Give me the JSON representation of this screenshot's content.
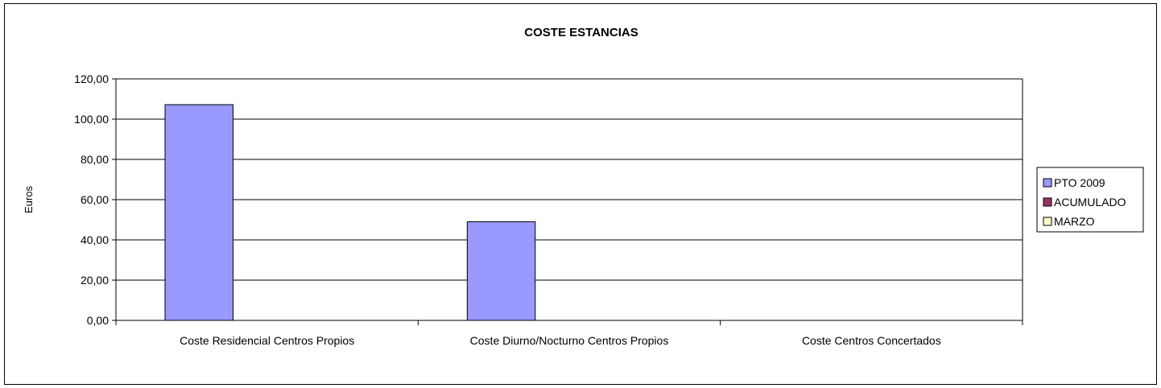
{
  "chart_data": {
    "type": "bar",
    "title": "COSTE ESTANCIAS",
    "xlabel": "",
    "ylabel": "Euros",
    "ylim": [
      0,
      120
    ],
    "yticks": [
      "0,00",
      "20,00",
      "40,00",
      "60,00",
      "80,00",
      "100,00",
      "120,00"
    ],
    "ytick_values": [
      0,
      20,
      40,
      60,
      80,
      100,
      120
    ],
    "grid": true,
    "legend_position": "right",
    "categories": [
      "Coste Residencial Centros Propios",
      "Coste Diurno/Nocturno Centros Propios",
      "Coste Centros Concertados"
    ],
    "series": [
      {
        "name": "PTO 2009",
        "color": "#9999ff",
        "values": [
          107.2,
          49.0,
          0
        ]
      },
      {
        "name": "ACUMULADO",
        "color": "#993366",
        "values": [
          0,
          0,
          0
        ]
      },
      {
        "name": "MARZO",
        "color": "#ffffcc",
        "values": [
          0,
          0,
          0
        ]
      }
    ]
  }
}
